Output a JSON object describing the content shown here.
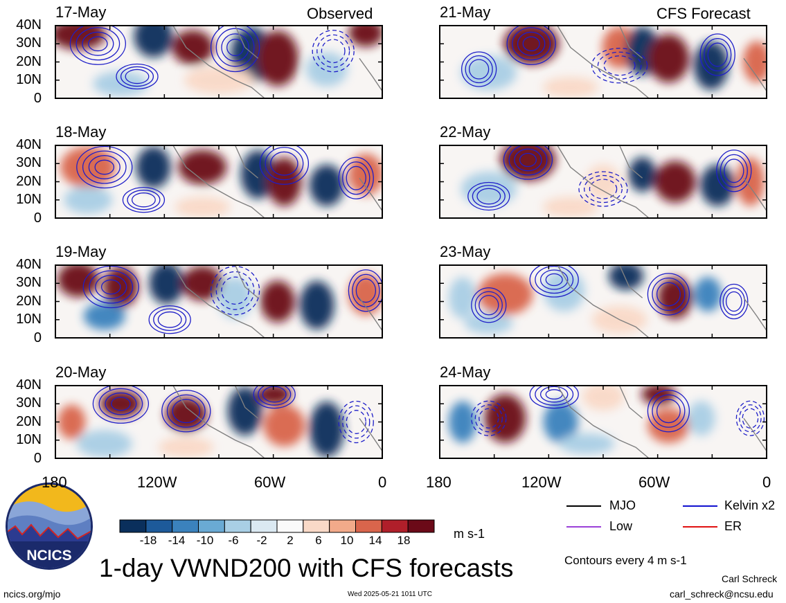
{
  "figure": {
    "title": "1-day VWND200 with CFS forecasts",
    "variable": "VWND200",
    "units": "m s-1",
    "contour_note": "Contours every 4 m s-1"
  },
  "panels": {
    "observed_label": "Observed",
    "forecast_label": "CFS Forecast",
    "observed_dates": [
      "17-May",
      "18-May",
      "19-May",
      "20-May"
    ],
    "forecast_dates": [
      "21-May",
      "22-May",
      "23-May",
      "24-May"
    ]
  },
  "axes": {
    "lat_ticks": [
      "40N",
      "30N",
      "20N",
      "10N",
      "0"
    ],
    "lon_ticks": [
      "180",
      "120W",
      "60W",
      "0"
    ],
    "lat_range": [
      0,
      40
    ],
    "lon_range": [
      -180,
      0
    ]
  },
  "colorbar": {
    "ticks": [
      "-18",
      "-14",
      "-10",
      "-6",
      "-2",
      "2",
      "6",
      "10",
      "14",
      "18"
    ],
    "colors": [
      "#0a2f5c",
      "#1d5a9a",
      "#3b82bd",
      "#6aaad4",
      "#a9cfe5",
      "#dbe9f2",
      "#fafafa",
      "#f9d9c7",
      "#f2aa8a",
      "#d9654c",
      "#b01f2a",
      "#6b0a18"
    ]
  },
  "legend": {
    "items": [
      {
        "label": "MJO",
        "color": "#000000"
      },
      {
        "label": "Kelvin x2",
        "color": "#1010d0"
      },
      {
        "label": "Low",
        "color": "#9a40d8"
      },
      {
        "label": "ER",
        "color": "#e01010"
      }
    ]
  },
  "logo": {
    "text": "NCICS"
  },
  "footer": {
    "left": "ncics.org/mjo",
    "center": "Wed 2025-05-21 1011 UTC",
    "author": "Carl Schreck",
    "email": "carl_schreck@ncsu.edu"
  }
}
